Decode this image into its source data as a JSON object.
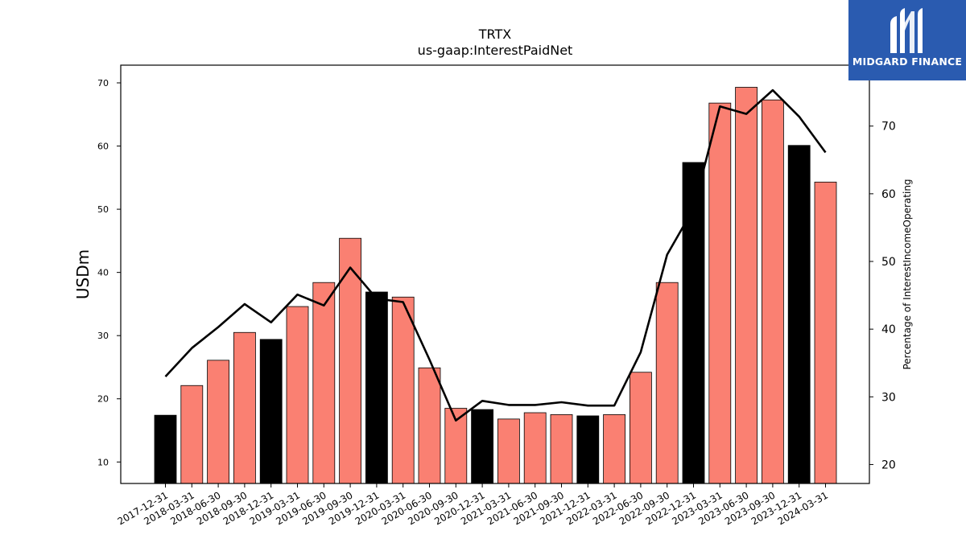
{
  "brand": {
    "name": "MIDGARD FINANCE",
    "bg_color": "#2a5bb0",
    "mark_icon": "midgard-logo-icon"
  },
  "chart_data": {
    "type": "bar",
    "title": "TRTX",
    "subtitle": "us-gaap:InterestPaidNet",
    "ylabel": "USDm",
    "y2label": "Percentage of InterestIncomeOperating",
    "ylim": [
      6.6,
      72.8
    ],
    "y2lim": [
      17.2,
      79.0
    ],
    "yticks": [
      10,
      20,
      30,
      40,
      50,
      60,
      70
    ],
    "y2ticks": [
      20,
      30,
      40,
      50,
      60,
      70
    ],
    "grid": false,
    "colors": {
      "annual": "#000000",
      "quarter": "#fa8072",
      "line": "#000000"
    },
    "categories": [
      "2017-12-31",
      "2018-03-31",
      "2018-06-30",
      "2018-09-30",
      "2018-12-31",
      "2019-03-31",
      "2019-06-30",
      "2019-09-30",
      "2019-12-31",
      "2020-03-31",
      "2020-06-30",
      "2020-09-30",
      "2020-12-31",
      "2021-03-31",
      "2021-06-30",
      "2021-09-30",
      "2021-12-31",
      "2022-03-31",
      "2022-06-30",
      "2022-09-30",
      "2022-12-31",
      "2023-03-31",
      "2023-06-30",
      "2023-09-30",
      "2023-12-31",
      "2024-03-31"
    ],
    "series": [
      {
        "kind": "bar",
        "values": [
          17.4,
          22.1,
          26.1,
          30.5,
          29.4,
          34.6,
          38.4,
          45.4,
          36.9,
          36.1,
          24.9,
          18.5,
          18.3,
          16.8,
          17.8,
          17.5,
          17.3,
          17.5,
          24.2,
          38.4,
          57.4,
          66.8,
          69.3,
          67.3,
          60.1,
          54.3
        ],
        "annual_flags": [
          true,
          false,
          false,
          false,
          true,
          false,
          false,
          false,
          true,
          false,
          false,
          false,
          true,
          false,
          false,
          false,
          true,
          false,
          false,
          false,
          true,
          false,
          false,
          false,
          true,
          false
        ]
      },
      {
        "kind": "line",
        "axis": "right",
        "values": [
          33.0,
          37.2,
          40.3,
          43.7,
          41.0,
          45.1,
          43.5,
          49.1,
          44.5,
          44.0,
          35.5,
          26.5,
          29.4,
          28.8,
          28.8,
          29.2,
          28.7,
          28.7,
          36.6,
          51.0,
          57.8,
          72.9,
          71.8,
          75.3,
          71.4,
          66.1
        ]
      }
    ]
  }
}
